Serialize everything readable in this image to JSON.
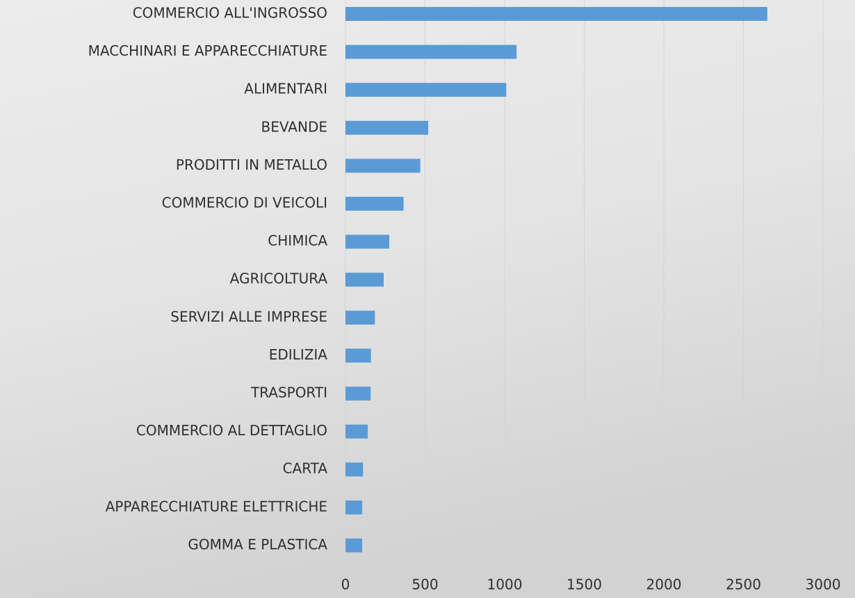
{
  "chart_data": {
    "type": "hbar",
    "categories": [
      "COMMERCIO ALL'INGROSSO",
      "MACCHINARI E APPARECCHIATURE",
      "ALIMENTARI",
      "BEVANDE",
      "PRODITTI IN METALLO",
      "COMMERCIO DI VEICOLI",
      "CHIMICA",
      "AGRICOLTURA",
      "SERVIZI ALLE IMPRESE",
      "EDILIZIA",
      "TRASPORTI",
      "COMMERCIO AL DETTAGLIO",
      "CARTA",
      "APPARECCHIATURE ELETTRICHE",
      "GOMMA E PLASTICA"
    ],
    "values": [
      2650,
      1075,
      1010,
      520,
      470,
      365,
      275,
      240,
      185,
      160,
      158,
      140,
      110,
      105,
      105
    ],
    "color": "#5b9bd5",
    "xlim": [
      0,
      3000
    ],
    "xticks": [
      0,
      500,
      1000,
      1500,
      2000,
      2500,
      3000
    ],
    "grid": true
  }
}
